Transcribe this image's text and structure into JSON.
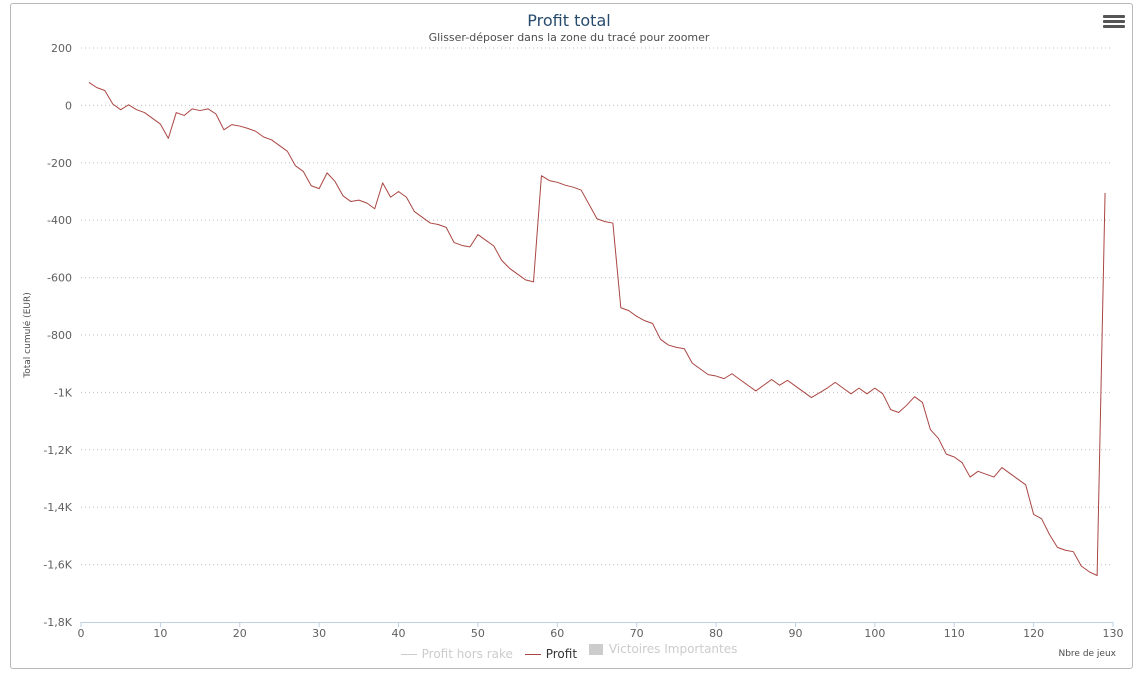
{
  "chart_data": {
    "type": "line",
    "title": "Profit total",
    "subtitle": "Glisser-déposer dans la zone du tracé pour zoomer",
    "ylabel": "Total cumulé (EUR)",
    "xlabel": "Nbre de jeux",
    "xlim": [
      0,
      130
    ],
    "ylim": [
      -1800,
      200
    ],
    "x_ticks": [
      {
        "value": 0,
        "label": "0"
      },
      {
        "value": 10,
        "label": "10"
      },
      {
        "value": 20,
        "label": "20"
      },
      {
        "value": 30,
        "label": "30"
      },
      {
        "value": 40,
        "label": "40"
      },
      {
        "value": 50,
        "label": "50"
      },
      {
        "value": 60,
        "label": "60"
      },
      {
        "value": 70,
        "label": "70"
      },
      {
        "value": 80,
        "label": "80"
      },
      {
        "value": 90,
        "label": "90"
      },
      {
        "value": 100,
        "label": "100"
      },
      {
        "value": 110,
        "label": "110"
      },
      {
        "value": 120,
        "label": "120"
      },
      {
        "value": 130,
        "label": "130"
      }
    ],
    "y_ticks": [
      {
        "value": 200,
        "label": "200"
      },
      {
        "value": 0,
        "label": "0"
      },
      {
        "value": -200,
        "label": "-200"
      },
      {
        "value": -400,
        "label": "-400"
      },
      {
        "value": -600,
        "label": "-600"
      },
      {
        "value": -800,
        "label": "-800"
      },
      {
        "value": -1000,
        "label": "-1K"
      },
      {
        "value": -1200,
        "label": "-1,2K"
      },
      {
        "value": -1400,
        "label": "-1,4K"
      },
      {
        "value": -1600,
        "label": "-1,6K"
      },
      {
        "value": -1800,
        "label": "-1,8K"
      }
    ],
    "grid": true,
    "legend_position": "bottom",
    "series": [
      {
        "name": "Profit hors rake",
        "visible": false,
        "color": "#cccccc",
        "values": []
      },
      {
        "name": "Profit",
        "visible": true,
        "color": "#aa4643",
        "points": [
          [
            1,
            80
          ],
          [
            2,
            62
          ],
          [
            3,
            52
          ],
          [
            4,
            5
          ],
          [
            5,
            -15
          ],
          [
            6,
            2
          ],
          [
            7,
            -15
          ],
          [
            8,
            -25
          ],
          [
            9,
            -45
          ],
          [
            10,
            -65
          ],
          [
            11,
            -115
          ],
          [
            12,
            -25
          ],
          [
            13,
            -35
          ],
          [
            14,
            -12
          ],
          [
            15,
            -18
          ],
          [
            16,
            -12
          ],
          [
            17,
            -30
          ],
          [
            18,
            -85
          ],
          [
            19,
            -67
          ],
          [
            20,
            -72
          ],
          [
            21,
            -80
          ],
          [
            22,
            -90
          ],
          [
            23,
            -110
          ],
          [
            24,
            -120
          ],
          [
            25,
            -140
          ],
          [
            26,
            -160
          ],
          [
            27,
            -210
          ],
          [
            28,
            -230
          ],
          [
            29,
            -280
          ],
          [
            30,
            -290
          ],
          [
            31,
            -235
          ],
          [
            32,
            -265
          ],
          [
            33,
            -315
          ],
          [
            34,
            -335
          ],
          [
            35,
            -330
          ],
          [
            36,
            -340
          ],
          [
            37,
            -360
          ],
          [
            38,
            -270
          ],
          [
            39,
            -320
          ],
          [
            40,
            -300
          ],
          [
            41,
            -320
          ],
          [
            42,
            -370
          ],
          [
            43,
            -390
          ],
          [
            44,
            -410
          ],
          [
            45,
            -415
          ],
          [
            46,
            -425
          ],
          [
            47,
            -478
          ],
          [
            48,
            -488
          ],
          [
            49,
            -493
          ],
          [
            50,
            -450
          ],
          [
            51,
            -470
          ],
          [
            52,
            -490
          ],
          [
            53,
            -540
          ],
          [
            54,
            -568
          ],
          [
            55,
            -588
          ],
          [
            56,
            -608
          ],
          [
            57,
            -615
          ],
          [
            58,
            -245
          ],
          [
            59,
            -262
          ],
          [
            60,
            -268
          ],
          [
            61,
            -278
          ],
          [
            62,
            -285
          ],
          [
            63,
            -295
          ],
          [
            64,
            -345
          ],
          [
            65,
            -395
          ],
          [
            66,
            -405
          ],
          [
            67,
            -410
          ],
          [
            68,
            -705
          ],
          [
            69,
            -715
          ],
          [
            70,
            -735
          ],
          [
            71,
            -750
          ],
          [
            72,
            -760
          ],
          [
            73,
            -815
          ],
          [
            74,
            -835
          ],
          [
            75,
            -843
          ],
          [
            76,
            -848
          ],
          [
            77,
            -898
          ],
          [
            78,
            -918
          ],
          [
            79,
            -938
          ],
          [
            80,
            -943
          ],
          [
            81,
            -952
          ],
          [
            82,
            -935
          ],
          [
            83,
            -955
          ],
          [
            84,
            -975
          ],
          [
            85,
            -995
          ],
          [
            86,
            -975
          ],
          [
            87,
            -955
          ],
          [
            88,
            -975
          ],
          [
            89,
            -958
          ],
          [
            90,
            -978
          ],
          [
            91,
            -998
          ],
          [
            92,
            -1018
          ],
          [
            93,
            -1002
          ],
          [
            94,
            -985
          ],
          [
            95,
            -965
          ],
          [
            96,
            -985
          ],
          [
            97,
            -1005
          ],
          [
            98,
            -985
          ],
          [
            99,
            -1005
          ],
          [
            100,
            -985
          ],
          [
            101,
            -1005
          ],
          [
            102,
            -1060
          ],
          [
            103,
            -1070
          ],
          [
            104,
            -1045
          ],
          [
            105,
            -1015
          ],
          [
            106,
            -1035
          ],
          [
            107,
            -1130
          ],
          [
            108,
            -1160
          ],
          [
            109,
            -1215
          ],
          [
            110,
            -1225
          ],
          [
            111,
            -1245
          ],
          [
            112,
            -1295
          ],
          [
            113,
            -1275
          ],
          [
            114,
            -1285
          ],
          [
            115,
            -1295
          ],
          [
            116,
            -1262
          ],
          [
            117,
            -1282
          ],
          [
            118,
            -1302
          ],
          [
            119,
            -1322
          ],
          [
            120,
            -1425
          ],
          [
            121,
            -1440
          ],
          [
            122,
            -1495
          ],
          [
            123,
            -1540
          ],
          [
            124,
            -1550
          ],
          [
            125,
            -1555
          ],
          [
            126,
            -1605
          ],
          [
            127,
            -1625
          ],
          [
            128,
            -1638
          ],
          [
            129,
            -305
          ]
        ]
      },
      {
        "name": "Victoires Importantes",
        "visible": false,
        "color": "#cccccc",
        "values": []
      }
    ]
  },
  "legend": {
    "items": [
      {
        "label": "Profit hors rake",
        "color": "#cccccc",
        "text_color": "#cccccc",
        "symbol": "line"
      },
      {
        "label": "Profit",
        "color": "#aa4643",
        "text_color": "#333333",
        "symbol": "line"
      },
      {
        "label": "Victoires Importantes",
        "color": "#cccccc",
        "text_color": "#cccccc",
        "symbol": "box"
      }
    ]
  },
  "menu": {
    "icon": "hamburger-menu-icon"
  },
  "colors": {
    "grid": "#c0c0c0",
    "axis": "#c0d0e0",
    "title": "#274b6d",
    "series": "#aa4643"
  }
}
